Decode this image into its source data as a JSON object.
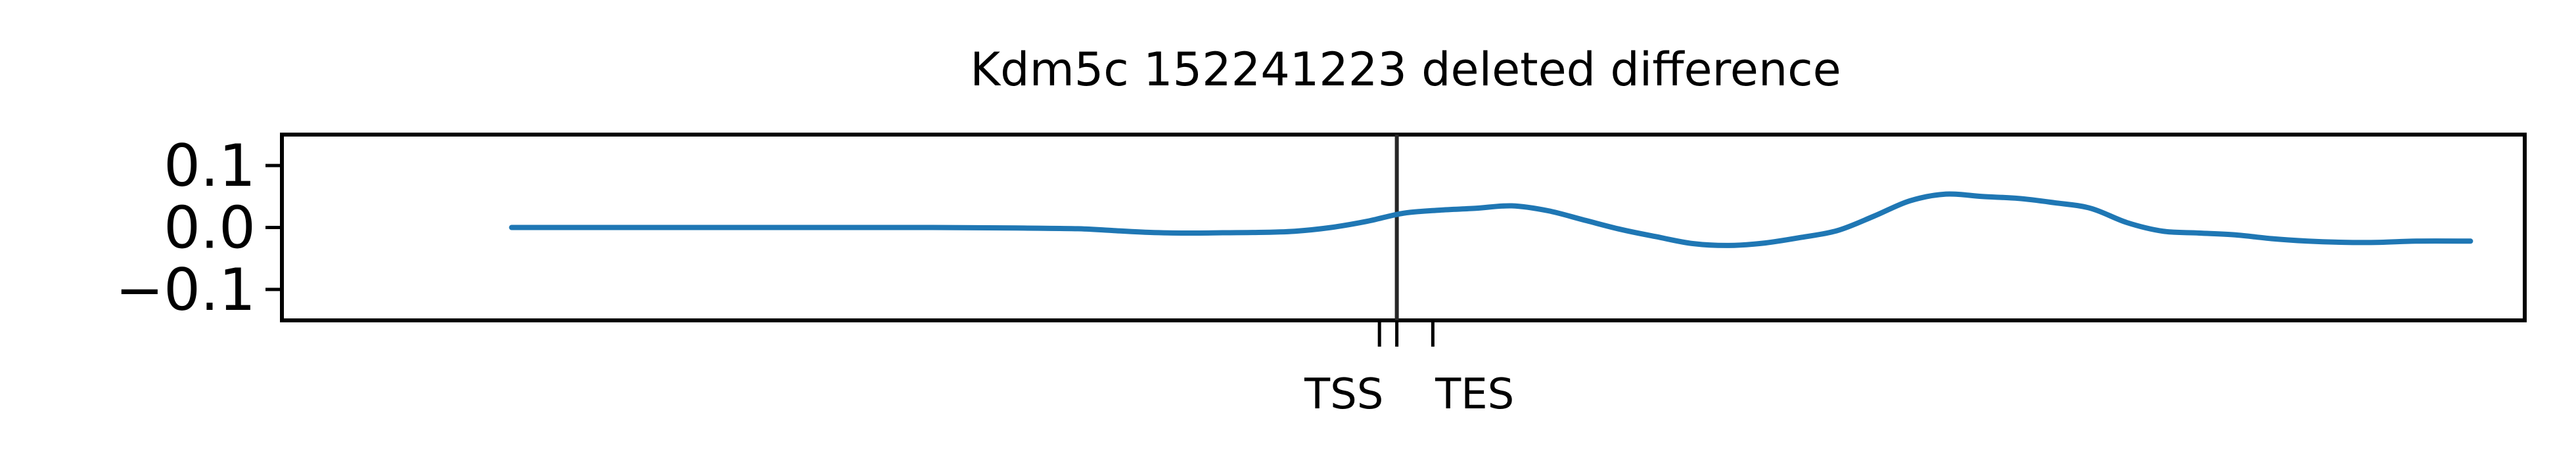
{
  "chart_data": {
    "type": "line",
    "title": "Kdm5c 152241223 deleted difference",
    "xlabel": "",
    "ylabel": "",
    "ylim": [
      -0.15,
      0.15
    ],
    "yticks": [
      {
        "value": 0.1,
        "label": "0.1"
      },
      {
        "value": 0.0,
        "label": "0.0"
      },
      {
        "value": -0.1,
        "label": "−0.1"
      }
    ],
    "xlim": [
      -0.16,
      1.08
    ],
    "xticks": [
      {
        "value": 0.4468,
        "label": ""
      },
      {
        "value": 0.4564,
        "label": ""
      },
      {
        "value": 0.4763,
        "label": ""
      }
    ],
    "xtick_labels": [
      {
        "value": 0.4272,
        "label": "TSS"
      },
      {
        "value": 0.4995,
        "label": "TES"
      }
    ],
    "vline": {
      "x": 0.4564,
      "color": "#262626"
    },
    "grid": false,
    "legend": "none",
    "series": [
      {
        "color": "#1f77b4",
        "x": [
          -0.033,
          0.0,
          0.1,
          0.2,
          0.25,
          0.28,
          0.3,
          0.32,
          0.34,
          0.36,
          0.38,
          0.4,
          0.42,
          0.44,
          0.46,
          0.48,
          0.5,
          0.52,
          0.54,
          0.56,
          0.58,
          0.6,
          0.62,
          0.64,
          0.66,
          0.68,
          0.7,
          0.72,
          0.74,
          0.76,
          0.78,
          0.8,
          0.82,
          0.84,
          0.86,
          0.88,
          0.9,
          0.92,
          0.94,
          0.96,
          0.98,
          1.0,
          1.02,
          1.05
        ],
        "y": [
          0.0,
          0.0,
          0.0,
          0.0,
          -0.001,
          -0.002,
          -0.005,
          -0.008,
          -0.009,
          -0.0085,
          -0.008,
          -0.006,
          0.0,
          0.01,
          0.023,
          0.028,
          0.031,
          0.035,
          0.027,
          0.012,
          -0.003,
          -0.015,
          -0.026,
          -0.029,
          -0.025,
          -0.016,
          -0.005,
          0.018,
          0.043,
          0.054,
          0.05,
          0.047,
          0.04,
          0.031,
          0.008,
          -0.006,
          -0.009,
          -0.012,
          -0.018,
          -0.022,
          -0.024,
          -0.024,
          -0.022,
          -0.022
        ]
      }
    ]
  }
}
